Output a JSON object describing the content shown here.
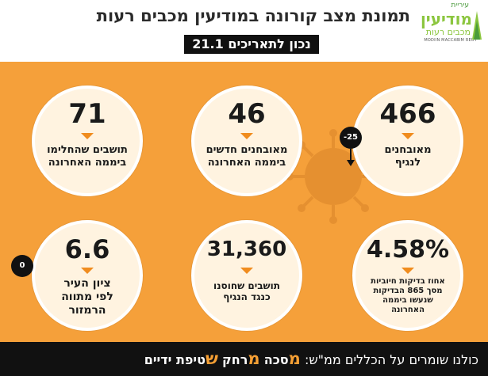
{
  "header": {
    "title": "תמונת מצב קורונה במודיעין מכבים רעות",
    "date": "נכון לתאריכים 21.1",
    "logo": {
      "top": "עיריית",
      "main": "מודיעין",
      "sub": "מכבים רעות",
      "en": "MODIIN MACCABIM REUT"
    }
  },
  "stats": [
    {
      "value": "466",
      "label": "מאובחנים לנגיף",
      "badge": "-25"
    },
    {
      "value": "46",
      "label": "מאובחנים חדשים ביממה האחרונה"
    },
    {
      "value": "71",
      "label": "תושבים שהחלימו ביממה האחרונה"
    },
    {
      "value": "4.58%",
      "label": "אחוז בדיקות חיוביות מסך 865 הבדיקות שנעשו ביממה האחרונה"
    },
    {
      "value": "31,360",
      "label": "תושבים שחוסנו כנגד הנגיף"
    },
    {
      "value": "6.6",
      "label": "ציון העיר לפי מתווה הרמזור",
      "badge": "0"
    }
  ],
  "footer": {
    "intro": "כולנו שומרים על הכללים ממ\"ש:",
    "m1_letter": "מ",
    "m1_rest": "סכה",
    "m2_letter": "מ",
    "m2_rest": "רחק",
    "s_letter": "ש",
    "s_rest": "טיפת ידיים"
  },
  "colors": {
    "accent": "#f5a03a",
    "circle": "#fff3e0",
    "dark": "#111111",
    "logo": "#8cc63f"
  }
}
